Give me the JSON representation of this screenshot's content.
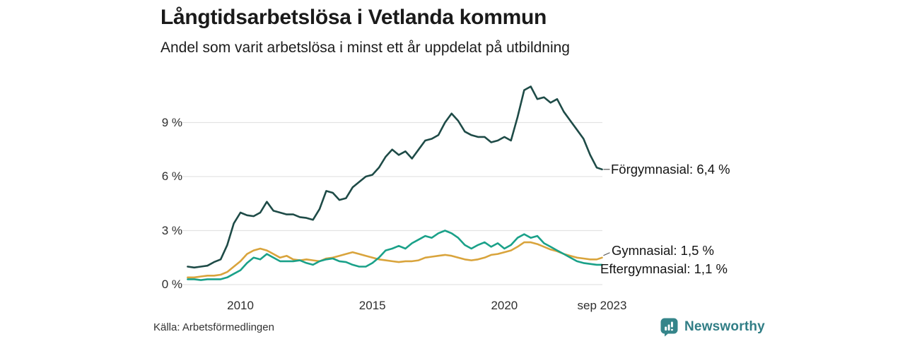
{
  "header": {
    "title": "Långtidsarbetslösa i Vetlanda kommun",
    "subtitle": "Andel som varit arbetslösa i minst ett år uppdelat på utbildning"
  },
  "footer": {
    "source": "Källa: Arbetsförmedlingen",
    "brand": "Newsworthy"
  },
  "colors": {
    "forgymnasial": "#1e4b47",
    "gymnasial": "#d9a43c",
    "eftergymnasial": "#1aa189",
    "grid": "#e3e3e3",
    "brand_teal": "#35858a"
  },
  "chart_data": {
    "type": "line",
    "title": "Långtidsarbetslösa i Vetlanda kommun",
    "subtitle": "Andel som varit arbetslösa i minst ett år uppdelat på utbildning",
    "grid": "horizontal",
    "legend_position": "end-of-line labels",
    "xlim": [
      2008,
      2023.75
    ],
    "ylim": [
      0,
      11.5
    ],
    "y_ticks": [
      {
        "label": "0 %",
        "value": 0
      },
      {
        "label": "3 %",
        "value": 3
      },
      {
        "label": "6 %",
        "value": 6
      },
      {
        "label": "9 %",
        "value": 9
      }
    ],
    "x_ticks": [
      {
        "label": "2010",
        "year": 2010
      },
      {
        "label": "2015",
        "year": 2015
      },
      {
        "label": "2020",
        "year": 2020
      },
      {
        "label": "sep 2023",
        "year": 2023.7
      }
    ],
    "x": [
      2008.0,
      2008.25,
      2008.5,
      2008.75,
      2009.0,
      2009.25,
      2009.5,
      2009.75,
      2010.0,
      2010.25,
      2010.5,
      2010.75,
      2011.0,
      2011.25,
      2011.5,
      2011.75,
      2012.0,
      2012.25,
      2012.5,
      2012.75,
      2013.0,
      2013.25,
      2013.5,
      2013.75,
      2014.0,
      2014.25,
      2014.5,
      2014.75,
      2015.0,
      2015.25,
      2015.5,
      2015.75,
      2016.0,
      2016.25,
      2016.5,
      2016.75,
      2017.0,
      2017.25,
      2017.5,
      2017.75,
      2018.0,
      2018.25,
      2018.5,
      2018.75,
      2019.0,
      2019.25,
      2019.5,
      2019.75,
      2020.0,
      2020.25,
      2020.5,
      2020.75,
      2021.0,
      2021.25,
      2021.5,
      2021.75,
      2022.0,
      2022.25,
      2022.5,
      2022.75,
      2023.0,
      2023.25,
      2023.5,
      2023.7
    ],
    "series": [
      {
        "name": "Förgymnasial",
        "label": "Förgymnasial: 6,4 %",
        "last_value": 6.4,
        "color": "#1e4b47",
        "values": [
          1.0,
          0.95,
          1.0,
          1.05,
          1.25,
          1.4,
          2.2,
          3.4,
          4.0,
          3.85,
          3.8,
          4.0,
          4.6,
          4.1,
          4.0,
          3.9,
          3.9,
          3.75,
          3.7,
          3.6,
          4.2,
          5.2,
          5.1,
          4.7,
          4.8,
          5.4,
          5.7,
          6.0,
          6.1,
          6.5,
          7.1,
          7.5,
          7.2,
          7.4,
          7.0,
          7.5,
          8.0,
          8.1,
          8.3,
          9.0,
          9.5,
          9.1,
          8.5,
          8.3,
          8.2,
          8.2,
          7.9,
          8.0,
          8.2,
          8.0,
          9.3,
          10.8,
          11.0,
          10.3,
          10.4,
          10.1,
          10.3,
          9.6,
          9.1,
          8.6,
          8.1,
          7.2,
          6.5,
          6.4
        ]
      },
      {
        "name": "Gymnasial",
        "label": "Gymnasial: 1,5 %",
        "last_value": 1.5,
        "color": "#d9a43c",
        "values": [
          0.4,
          0.4,
          0.45,
          0.5,
          0.5,
          0.55,
          0.7,
          1.0,
          1.3,
          1.7,
          1.9,
          2.0,
          1.9,
          1.7,
          1.5,
          1.6,
          1.4,
          1.35,
          1.4,
          1.35,
          1.3,
          1.45,
          1.5,
          1.6,
          1.7,
          1.8,
          1.7,
          1.6,
          1.5,
          1.4,
          1.35,
          1.3,
          1.25,
          1.3,
          1.3,
          1.35,
          1.5,
          1.55,
          1.6,
          1.65,
          1.6,
          1.5,
          1.4,
          1.35,
          1.4,
          1.5,
          1.65,
          1.7,
          1.8,
          1.9,
          2.1,
          2.35,
          2.35,
          2.25,
          2.1,
          1.95,
          1.85,
          1.7,
          1.6,
          1.5,
          1.45,
          1.4,
          1.4,
          1.5
        ]
      },
      {
        "name": "Eftergymnasial",
        "label": "Eftergymnasial: 1,1 %",
        "last_value": 1.1,
        "color": "#1aa189",
        "values": [
          0.3,
          0.3,
          0.25,
          0.3,
          0.3,
          0.3,
          0.4,
          0.6,
          0.8,
          1.2,
          1.5,
          1.4,
          1.7,
          1.5,
          1.3,
          1.3,
          1.3,
          1.35,
          1.2,
          1.1,
          1.3,
          1.4,
          1.45,
          1.3,
          1.25,
          1.1,
          1.0,
          1.0,
          1.2,
          1.5,
          1.9,
          2.0,
          2.15,
          2.0,
          2.3,
          2.5,
          2.7,
          2.6,
          2.85,
          3.0,
          2.85,
          2.6,
          2.2,
          2.0,
          2.2,
          2.35,
          2.1,
          2.3,
          2.0,
          2.2,
          2.6,
          2.8,
          2.6,
          2.7,
          2.3,
          2.1,
          1.9,
          1.7,
          1.5,
          1.3,
          1.2,
          1.15,
          1.1,
          1.1
        ]
      }
    ]
  }
}
